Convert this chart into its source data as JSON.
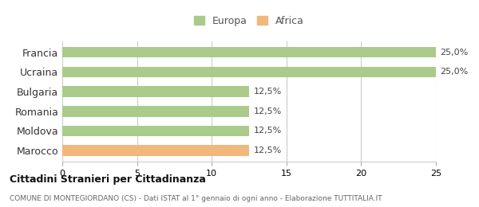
{
  "categories": [
    "Francia",
    "Ucraina",
    "Bulgaria",
    "Romania",
    "Moldova",
    "Marocco"
  ],
  "values": [
    25.0,
    25.0,
    12.5,
    12.5,
    12.5,
    12.5
  ],
  "bar_colors": [
    "#aacb8a",
    "#aacb8a",
    "#aacb8a",
    "#aacb8a",
    "#aacb8a",
    "#f0b87a"
  ],
  "bar_labels": [
    "25,0%",
    "25,0%",
    "12,5%",
    "12,5%",
    "12,5%",
    "12,5%"
  ],
  "xlim": [
    0,
    25
  ],
  "xticks": [
    0,
    5,
    10,
    15,
    20,
    25
  ],
  "legend_items": [
    {
      "label": "Europa",
      "color": "#aacb8a"
    },
    {
      "label": "Africa",
      "color": "#f0b87a"
    }
  ],
  "title": "Cittadini Stranieri per Cittadinanza",
  "subtitle": "COMUNE DI MONTEGIORDANO (CS) - Dati ISTAT al 1° gennaio di ogni anno - Elaborazione TUTTITALIA.IT",
  "background_color": "#ffffff",
  "grid_color": "#cccccc",
  "bar_height": 0.55
}
